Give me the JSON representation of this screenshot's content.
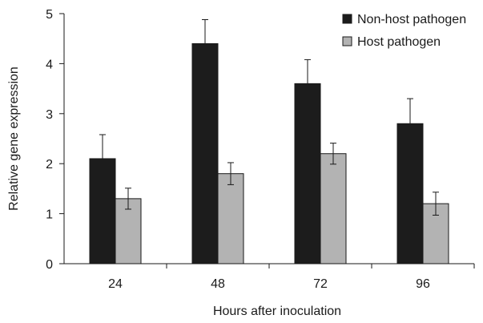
{
  "chart_data": {
    "type": "bar",
    "categories": [
      "24",
      "48",
      "72",
      "96"
    ],
    "series": [
      {
        "name": "Non-host pathogen",
        "values": [
          2.1,
          4.4,
          3.6,
          2.8
        ],
        "errors": [
          0.48,
          0.48,
          0.48,
          0.5
        ],
        "color": "#1c1c1c"
      },
      {
        "name": "Host pathogen",
        "values": [
          1.3,
          1.8,
          2.2,
          1.2
        ],
        "errors": [
          0.21,
          0.22,
          0.21,
          0.23
        ],
        "color": "#b3b3b3"
      }
    ],
    "xlabel": "Hours after inoculation",
    "ylabel": "Relative gene expression",
    "ylim": [
      0,
      5
    ],
    "yticks": [
      "0",
      "1",
      "2",
      "3",
      "4",
      "5"
    ],
    "grid": false,
    "legend_position": "top-right"
  }
}
